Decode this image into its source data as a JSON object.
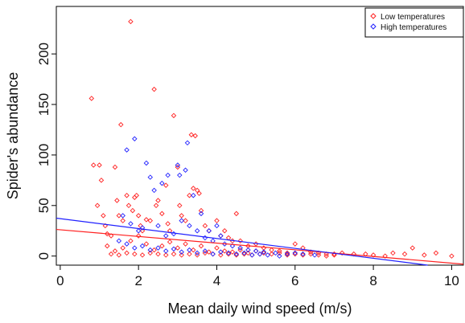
{
  "chart_data": {
    "type": "scatter",
    "title": "",
    "xlabel": "Mean daily wind speed (m/s)",
    "ylabel": "Spider's abundance",
    "xlim": [
      -0.1,
      10.3
    ],
    "ylim": [
      -9,
      247
    ],
    "x_ticks": [
      0,
      2,
      4,
      6,
      8,
      10
    ],
    "y_ticks": [
      0,
      50,
      100,
      150,
      200
    ],
    "x_tick_labels": [
      "0",
      "2",
      "4",
      "6",
      "8",
      "10"
    ],
    "y_tick_labels": [
      "0",
      "50",
      "100",
      "150",
      "200"
    ],
    "grid": false,
    "legend_position": "top-right",
    "series": [
      {
        "name": "Low temperatures",
        "color": "#ff2020",
        "marker": "diamond-open",
        "fit_line": {
          "intercept": 26,
          "slope": -3.3
        },
        "points": [
          [
            0.8,
            156
          ],
          [
            0.85,
            90
          ],
          [
            0.95,
            50
          ],
          [
            1.0,
            90
          ],
          [
            1.05,
            75
          ],
          [
            1.1,
            40
          ],
          [
            1.15,
            30
          ],
          [
            1.2,
            22
          ],
          [
            1.3,
            20
          ],
          [
            1.4,
            88
          ],
          [
            1.45,
            55
          ],
          [
            1.5,
            40
          ],
          [
            1.55,
            130
          ],
          [
            1.6,
            35
          ],
          [
            1.7,
            60
          ],
          [
            1.75,
            50
          ],
          [
            1.8,
            232
          ],
          [
            1.85,
            45
          ],
          [
            1.9,
            58
          ],
          [
            1.95,
            60
          ],
          [
            2.0,
            40
          ],
          [
            2.05,
            30
          ],
          [
            2.1,
            25
          ],
          [
            2.2,
            36
          ],
          [
            2.3,
            35
          ],
          [
            2.4,
            165
          ],
          [
            2.45,
            50
          ],
          [
            2.5,
            55
          ],
          [
            2.6,
            42
          ],
          [
            2.7,
            70
          ],
          [
            2.75,
            32
          ],
          [
            2.8,
            25
          ],
          [
            2.9,
            139
          ],
          [
            3.0,
            88
          ],
          [
            3.05,
            50
          ],
          [
            3.1,
            40
          ],
          [
            3.2,
            35
          ],
          [
            3.3,
            60
          ],
          [
            3.35,
            120
          ],
          [
            3.4,
            67
          ],
          [
            3.45,
            119
          ],
          [
            3.5,
            65
          ],
          [
            3.55,
            62
          ],
          [
            3.6,
            45
          ],
          [
            3.7,
            30
          ],
          [
            3.8,
            25
          ],
          [
            4.0,
            35
          ],
          [
            4.1,
            20
          ],
          [
            4.2,
            25
          ],
          [
            4.3,
            18
          ],
          [
            4.4,
            15
          ],
          [
            4.5,
            42
          ],
          [
            4.6,
            15
          ],
          [
            4.8,
            10
          ],
          [
            5.0,
            12
          ],
          [
            5.2,
            8
          ],
          [
            5.4,
            6
          ],
          [
            5.6,
            5
          ],
          [
            5.8,
            3
          ],
          [
            6.0,
            12
          ],
          [
            6.2,
            8
          ],
          [
            6.4,
            4
          ],
          [
            6.6,
            3
          ],
          [
            6.8,
            2
          ],
          [
            7.0,
            2
          ],
          [
            7.2,
            3
          ],
          [
            7.5,
            2
          ],
          [
            7.8,
            2
          ],
          [
            8.0,
            1
          ],
          [
            8.3,
            0
          ],
          [
            8.5,
            3
          ],
          [
            8.8,
            2
          ],
          [
            9.0,
            8
          ],
          [
            9.3,
            1
          ],
          [
            9.6,
            3
          ],
          [
            10.0,
            0
          ],
          [
            1.2,
            10
          ],
          [
            1.4,
            5
          ],
          [
            1.6,
            8
          ],
          [
            1.8,
            15
          ],
          [
            2.0,
            20
          ],
          [
            2.2,
            12
          ],
          [
            2.4,
            6
          ],
          [
            2.6,
            10
          ],
          [
            2.8,
            14
          ],
          [
            3.0,
            8
          ],
          [
            3.2,
            12
          ],
          [
            3.4,
            6
          ],
          [
            3.6,
            10
          ],
          [
            3.8,
            4
          ],
          [
            4.0,
            8
          ],
          [
            4.2,
            5
          ],
          [
            4.4,
            4
          ],
          [
            4.6,
            6
          ],
          [
            4.8,
            3
          ],
          [
            5.0,
            5
          ],
          [
            5.2,
            3
          ],
          [
            5.4,
            2
          ],
          [
            5.6,
            3
          ],
          [
            5.8,
            1
          ],
          [
            6.0,
            2
          ],
          [
            6.2,
            1
          ],
          [
            6.4,
            2
          ],
          [
            6.6,
            1
          ],
          [
            6.8,
            0
          ],
          [
            7.0,
            1
          ],
          [
            1.3,
            2
          ],
          [
            1.5,
            1
          ],
          [
            1.7,
            3
          ],
          [
            1.9,
            2
          ],
          [
            2.1,
            1
          ],
          [
            2.3,
            3
          ],
          [
            2.5,
            2
          ],
          [
            2.7,
            1
          ],
          [
            2.9,
            2
          ],
          [
            3.1,
            1
          ],
          [
            3.3,
            2
          ],
          [
            3.5,
            1
          ],
          [
            3.7,
            3
          ],
          [
            3.9,
            2
          ],
          [
            4.1,
            1
          ],
          [
            4.3,
            2
          ],
          [
            4.5,
            1
          ],
          [
            4.7,
            2
          ],
          [
            4.9,
            1
          ],
          [
            5.1,
            2
          ]
        ]
      },
      {
        "name": "High temperatures",
        "color": "#2020ff",
        "marker": "diamond-open",
        "fit_line": {
          "intercept": 37,
          "slope": -4.9
        },
        "points": [
          [
            1.7,
            105
          ],
          [
            1.9,
            116
          ],
          [
            2.2,
            92
          ],
          [
            2.3,
            78
          ],
          [
            2.4,
            65
          ],
          [
            2.6,
            72
          ],
          [
            2.75,
            80
          ],
          [
            3.0,
            90
          ],
          [
            3.05,
            80
          ],
          [
            3.2,
            85
          ],
          [
            3.25,
            112
          ],
          [
            3.4,
            60
          ],
          [
            3.6,
            42
          ],
          [
            3.8,
            25
          ],
          [
            4.0,
            30
          ],
          [
            4.1,
            20
          ],
          [
            1.6,
            40
          ],
          [
            1.8,
            32
          ],
          [
            2.0,
            25
          ],
          [
            2.1,
            28
          ],
          [
            2.5,
            30
          ],
          [
            2.7,
            20
          ],
          [
            2.9,
            22
          ],
          [
            3.1,
            35
          ],
          [
            3.3,
            30
          ],
          [
            3.5,
            25
          ],
          [
            3.7,
            18
          ],
          [
            3.9,
            15
          ],
          [
            4.2,
            12
          ],
          [
            4.4,
            10
          ],
          [
            4.6,
            8
          ],
          [
            4.8,
            6
          ],
          [
            5.0,
            5
          ],
          [
            5.2,
            4
          ],
          [
            5.5,
            3
          ],
          [
            5.8,
            2
          ],
          [
            6.0,
            3
          ],
          [
            6.2,
            2
          ],
          [
            6.5,
            1
          ],
          [
            1.5,
            15
          ],
          [
            1.7,
            12
          ],
          [
            1.9,
            8
          ],
          [
            2.1,
            10
          ],
          [
            2.3,
            6
          ],
          [
            2.5,
            8
          ],
          [
            2.7,
            5
          ],
          [
            2.9,
            7
          ],
          [
            3.1,
            4
          ],
          [
            3.3,
            6
          ],
          [
            3.5,
            3
          ],
          [
            3.7,
            5
          ],
          [
            3.9,
            2
          ],
          [
            4.1,
            4
          ],
          [
            4.3,
            3
          ],
          [
            4.5,
            2
          ],
          [
            4.7,
            3
          ],
          [
            4.9,
            1
          ],
          [
            5.1,
            2
          ],
          [
            5.3,
            1
          ],
          [
            5.6,
            0
          ]
        ]
      }
    ]
  }
}
